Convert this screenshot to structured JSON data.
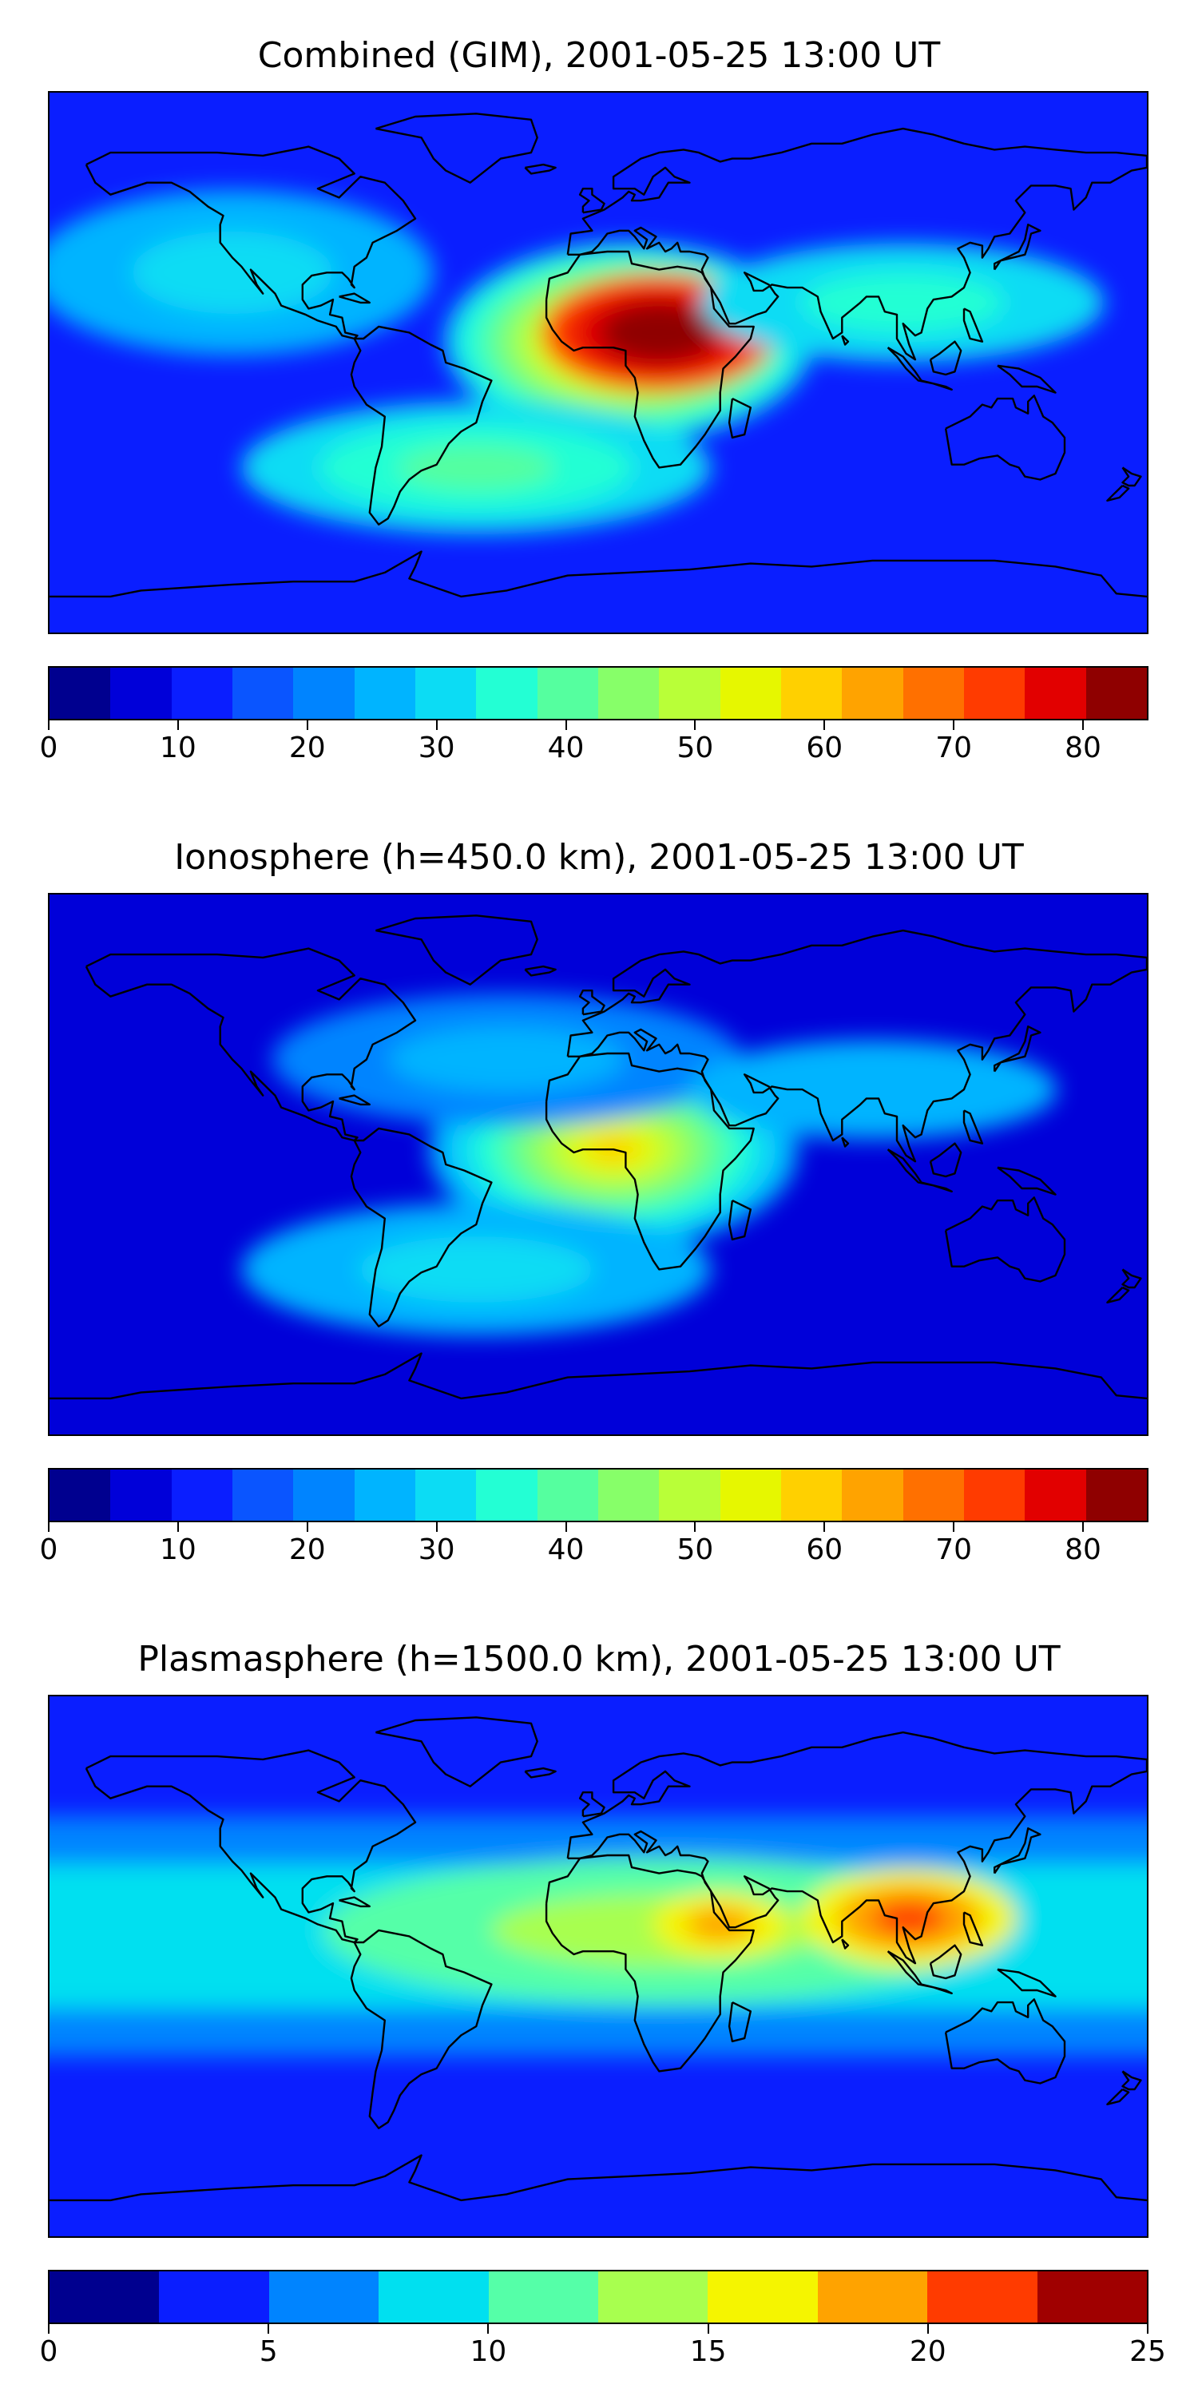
{
  "panels": [
    {
      "title": "Combined (GIM), 2001-05-25 13:00 UT",
      "colorbar": {
        "min": 0,
        "max": 85,
        "step": 5,
        "ticks": [
          "0",
          "10",
          "20",
          "30",
          "40",
          "50",
          "60",
          "70",
          "80"
        ],
        "tick_values": [
          0,
          10,
          20,
          30,
          40,
          50,
          60,
          70,
          80
        ],
        "colors": [
          "#00008f",
          "#0000d9",
          "#0a1eff",
          "#0a55ff",
          "#0084ff",
          "#00b4ff",
          "#0cdcf4",
          "#23ffd4",
          "#55ff9f",
          "#87ff69",
          "#b9ff38",
          "#e6f700",
          "#ffd000",
          "#ffa300",
          "#ff7000",
          "#ff3b00",
          "#e20000",
          "#8f0000"
        ]
      },
      "field": {
        "background_level": 2,
        "blobs": [
          {
            "lon": 10,
            "lat": 7,
            "rlon": 55,
            "rlat": 30,
            "level": 6,
            "steps": 10
          },
          {
            "lon": 20,
            "lat": 10,
            "rlon": 35,
            "rlat": 18,
            "level": 15,
            "steps": 4
          },
          {
            "lon": -120,
            "lat": 30,
            "rlon": 60,
            "rlat": 25,
            "level": 5,
            "steps": 2
          },
          {
            "lon": -40,
            "lat": -35,
            "rlon": 70,
            "rlat": 20,
            "level": 6,
            "steps": 3
          },
          {
            "lon": 100,
            "lat": 20,
            "rlon": 60,
            "rlat": 18,
            "level": 6,
            "steps": 2
          }
        ]
      }
    },
    {
      "title": "Ionosphere  (h=450.0 km), 2001-05-25 13:00 UT",
      "colorbar": {
        "min": 0,
        "max": 85,
        "step": 5,
        "ticks": [
          "0",
          "10",
          "20",
          "30",
          "40",
          "50",
          "60",
          "70",
          "80"
        ],
        "tick_values": [
          0,
          10,
          20,
          30,
          40,
          50,
          60,
          70,
          80
        ],
        "colors": [
          "#00008f",
          "#0000d9",
          "#0a1eff",
          "#0a55ff",
          "#0084ff",
          "#00b4ff",
          "#0cdcf4",
          "#23ffd4",
          "#55ff9f",
          "#87ff69",
          "#b9ff38",
          "#e6f700",
          "#ffd000",
          "#ffa300",
          "#ff7000",
          "#ff3b00",
          "#e20000",
          "#8f0000"
        ]
      },
      "field": {
        "background_level": 1,
        "blobs": [
          {
            "lon": 5,
            "lat": 5,
            "rlon": 55,
            "rlat": 30,
            "level": 5,
            "steps": 8
          },
          {
            "lon": -30,
            "lat": 35,
            "rlon": 70,
            "rlat": 20,
            "level": 4,
            "steps": 2
          },
          {
            "lon": -40,
            "lat": -35,
            "rlon": 70,
            "rlat": 20,
            "level": 5,
            "steps": 2
          },
          {
            "lon": 90,
            "lat": 25,
            "rlon": 55,
            "rlat": 15,
            "level": 5,
            "steps": 1
          }
        ]
      }
    },
    {
      "title": "Plasmasphere (h=1500.0 km), 2001-05-25 13:00 UT",
      "colorbar": {
        "min": 0,
        "max": 25,
        "step": 2.5,
        "ticks": [
          "0",
          "5",
          "10",
          "15",
          "20",
          "25"
        ],
        "tick_values": [
          0,
          5,
          10,
          15,
          20,
          25
        ],
        "colors": [
          "#00008f",
          "#0a1eff",
          "#0084ff",
          "#00e0f0",
          "#55ffa8",
          "#a8ff4f",
          "#f5f500",
          "#ffa300",
          "#ff3b00",
          "#a00000"
        ]
      },
      "field": {
        "background_level": 1,
        "band": {
          "lat": 10,
          "halfwidth": 40,
          "level": 3
        },
        "blobs": [
          {
            "lon": 20,
            "lat": 12,
            "rlon": 100,
            "rlat": 22,
            "level": 4,
            "steps": 2
          },
          {
            "lon": 40,
            "lat": 14,
            "rlon": 20,
            "rlat": 10,
            "level": 6,
            "steps": 2
          },
          {
            "lon": 102,
            "lat": 16,
            "rlon": 32,
            "rlat": 15,
            "level": 6,
            "steps": 3
          }
        ]
      }
    }
  ]
}
